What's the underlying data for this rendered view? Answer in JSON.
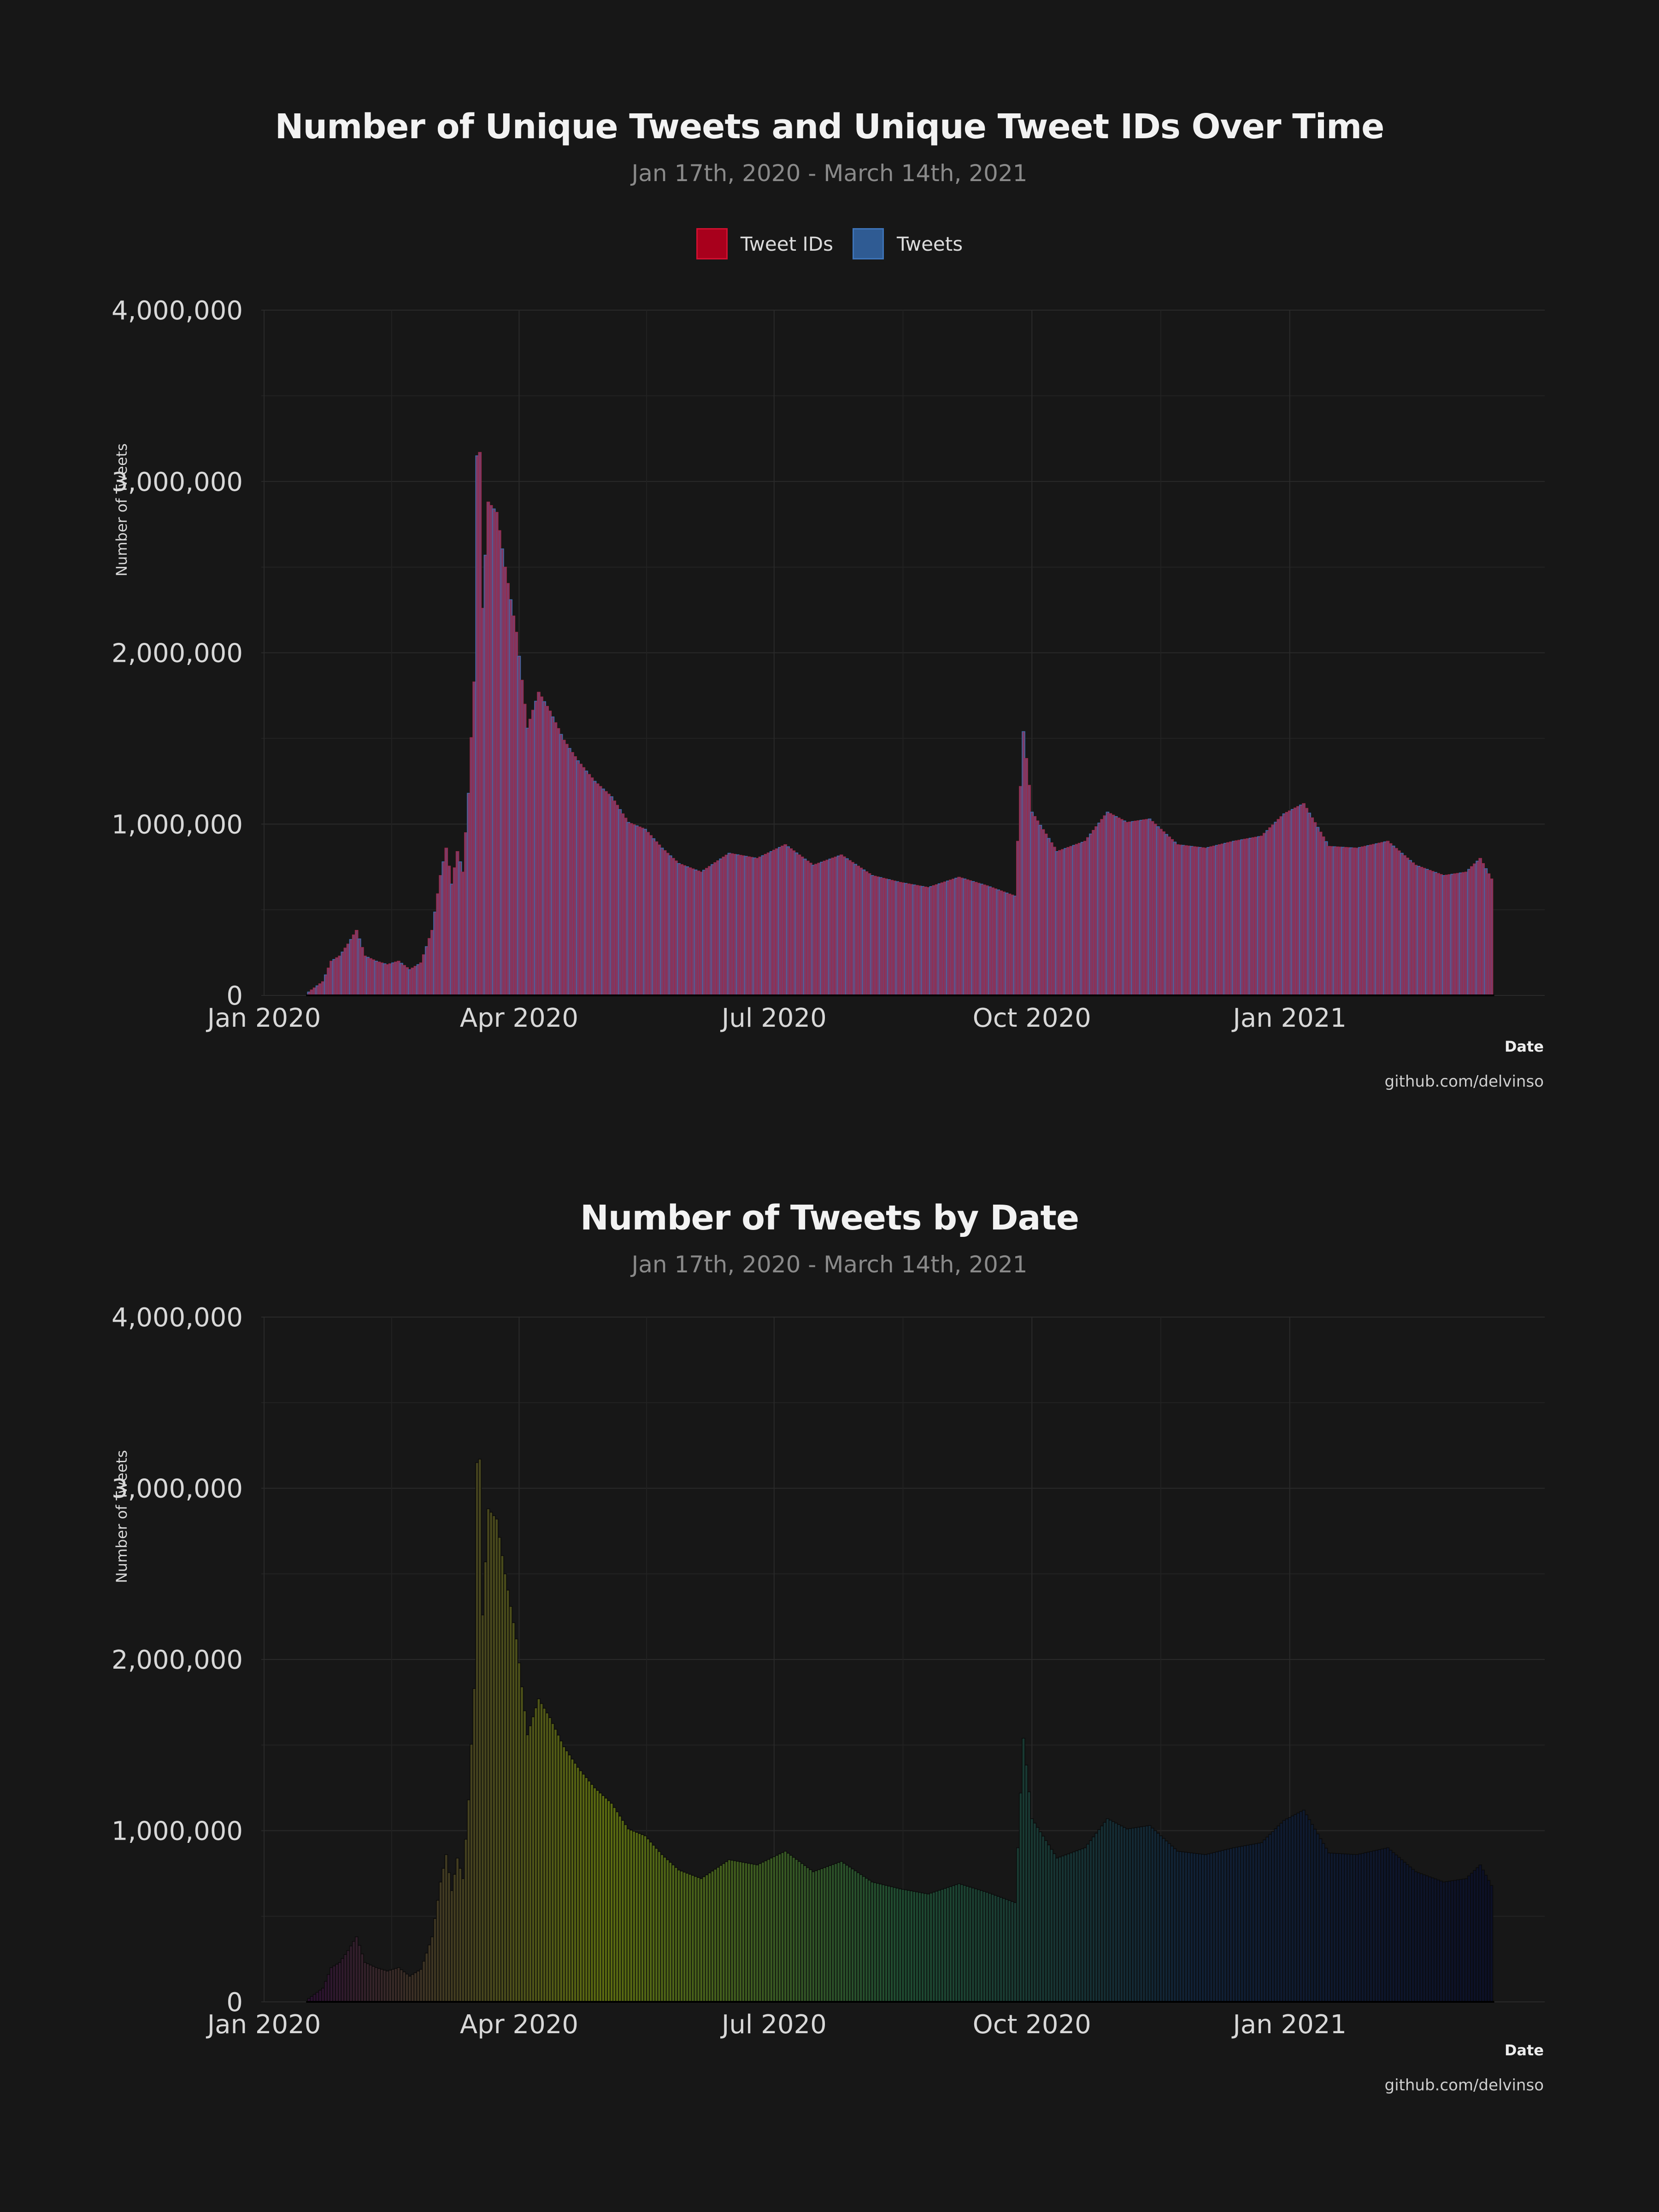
{
  "chart_data": [
    {
      "type": "bar",
      "title": "Number of Unique Tweets and Unique Tweet IDs Over Time",
      "subtitle": "Jan 17th, 2020 - March 14th, 2021",
      "xlabel": "Date",
      "ylabel": "Number of Tweets",
      "caption": "github.com/delvinso",
      "ylim": [
        0,
        4000000
      ],
      "yticks": [
        "0",
        "1,000,000",
        "2,000,000",
        "3,000,000",
        "4,000,000"
      ],
      "xticks": [
        "Jan 2020",
        "Apr 2020",
        "Jul 2020",
        "Oct 2020",
        "Jan 2021"
      ],
      "xtick_dates": [
        "2020-01-01",
        "2020-04-01",
        "2020-07-01",
        "2020-10-01",
        "2021-01-01"
      ],
      "date_range": [
        "2020-01-17",
        "2021-03-14"
      ],
      "legend_position": "top",
      "series": [
        {
          "name": "Tweet IDs",
          "color": "#a8001c"
        },
        {
          "name": "Tweets",
          "color": "#2f5b93"
        }
      ],
      "overlap_color": "#7d3a66",
      "daily_values_note": "Tweets ≈ Tweet IDs each day",
      "points": [
        [
          "2020-01-17",
          20000
        ],
        [
          "2020-01-22",
          80000
        ],
        [
          "2020-01-25",
          200000
        ],
        [
          "2020-01-28",
          230000
        ],
        [
          "2020-01-31",
          300000
        ],
        [
          "2020-02-03",
          380000
        ],
        [
          "2020-02-06",
          230000
        ],
        [
          "2020-02-10",
          200000
        ],
        [
          "2020-02-14",
          180000
        ],
        [
          "2020-02-18",
          200000
        ],
        [
          "2020-02-22",
          150000
        ],
        [
          "2020-02-26",
          190000
        ],
        [
          "2020-03-01",
          380000
        ],
        [
          "2020-03-04",
          700000
        ],
        [
          "2020-03-06",
          860000
        ],
        [
          "2020-03-08",
          650000
        ],
        [
          "2020-03-10",
          840000
        ],
        [
          "2020-03-12",
          720000
        ],
        [
          "2020-03-14",
          1180000
        ],
        [
          "2020-03-16",
          1830000
        ],
        [
          "2020-03-17",
          3150000
        ],
        [
          "2020-03-18",
          3170000
        ],
        [
          "2020-03-19",
          2260000
        ],
        [
          "2020-03-21",
          2880000
        ],
        [
          "2020-03-24",
          2820000
        ],
        [
          "2020-03-27",
          2500000
        ],
        [
          "2020-03-31",
          2120000
        ],
        [
          "2020-04-04",
          1560000
        ],
        [
          "2020-04-08",
          1770000
        ],
        [
          "2020-04-12",
          1660000
        ],
        [
          "2020-04-17",
          1490000
        ],
        [
          "2020-04-22",
          1370000
        ],
        [
          "2020-04-28",
          1250000
        ],
        [
          "2020-05-04",
          1160000
        ],
        [
          "2020-05-10",
          1010000
        ],
        [
          "2020-05-16",
          970000
        ],
        [
          "2020-05-22",
          860000
        ],
        [
          "2020-05-28",
          770000
        ],
        [
          "2020-06-05",
          720000
        ],
        [
          "2020-06-15",
          830000
        ],
        [
          "2020-06-25",
          800000
        ],
        [
          "2020-07-05",
          880000
        ],
        [
          "2020-07-15",
          760000
        ],
        [
          "2020-07-25",
          820000
        ],
        [
          "2020-08-05",
          700000
        ],
        [
          "2020-08-15",
          660000
        ],
        [
          "2020-08-25",
          630000
        ],
        [
          "2020-09-05",
          690000
        ],
        [
          "2020-09-15",
          640000
        ],
        [
          "2020-09-25",
          580000
        ],
        [
          "2020-09-28",
          1540000
        ],
        [
          "2020-10-01",
          1070000
        ],
        [
          "2020-10-10",
          840000
        ],
        [
          "2020-10-20",
          900000
        ],
        [
          "2020-10-28",
          1070000
        ],
        [
          "2020-11-04",
          1010000
        ],
        [
          "2020-11-12",
          1030000
        ],
        [
          "2020-11-22",
          880000
        ],
        [
          "2020-12-02",
          860000
        ],
        [
          "2020-12-12",
          900000
        ],
        [
          "2020-12-22",
          930000
        ],
        [
          "2020-12-30",
          1060000
        ],
        [
          "2021-01-06",
          1120000
        ],
        [
          "2021-01-15",
          870000
        ],
        [
          "2021-01-25",
          860000
        ],
        [
          "2021-02-05",
          900000
        ],
        [
          "2021-02-15",
          760000
        ],
        [
          "2021-02-25",
          700000
        ],
        [
          "2021-03-05",
          720000
        ],
        [
          "2021-03-10",
          800000
        ],
        [
          "2021-03-14",
          680000
        ]
      ]
    },
    {
      "type": "bar",
      "title": "Number of Tweets by Date",
      "subtitle": "Jan 17th, 2020 - March 14th, 2021",
      "xlabel": "Date",
      "ylabel": "Number of Tweets",
      "caption": "github.com/delvinso",
      "ylim": [
        0,
        4000000
      ],
      "yticks": [
        "0",
        "1,000,000",
        "2,000,000",
        "3,000,000",
        "4,000,000"
      ],
      "xticks": [
        "Jan 2020",
        "Apr 2020",
        "Jul 2020",
        "Oct 2020",
        "Jan 2021"
      ],
      "xtick_dates": [
        "2020-01-01",
        "2020-04-01",
        "2020-07-01",
        "2020-10-01",
        "2021-01-01"
      ],
      "date_range": [
        "2020-01-17",
        "2021-03-14"
      ],
      "fill_gradient": [
        "#2a1030",
        "#5a6a10",
        "#1e4a30",
        "#102035",
        "#0c1026"
      ],
      "points_ref": 0
    }
  ]
}
